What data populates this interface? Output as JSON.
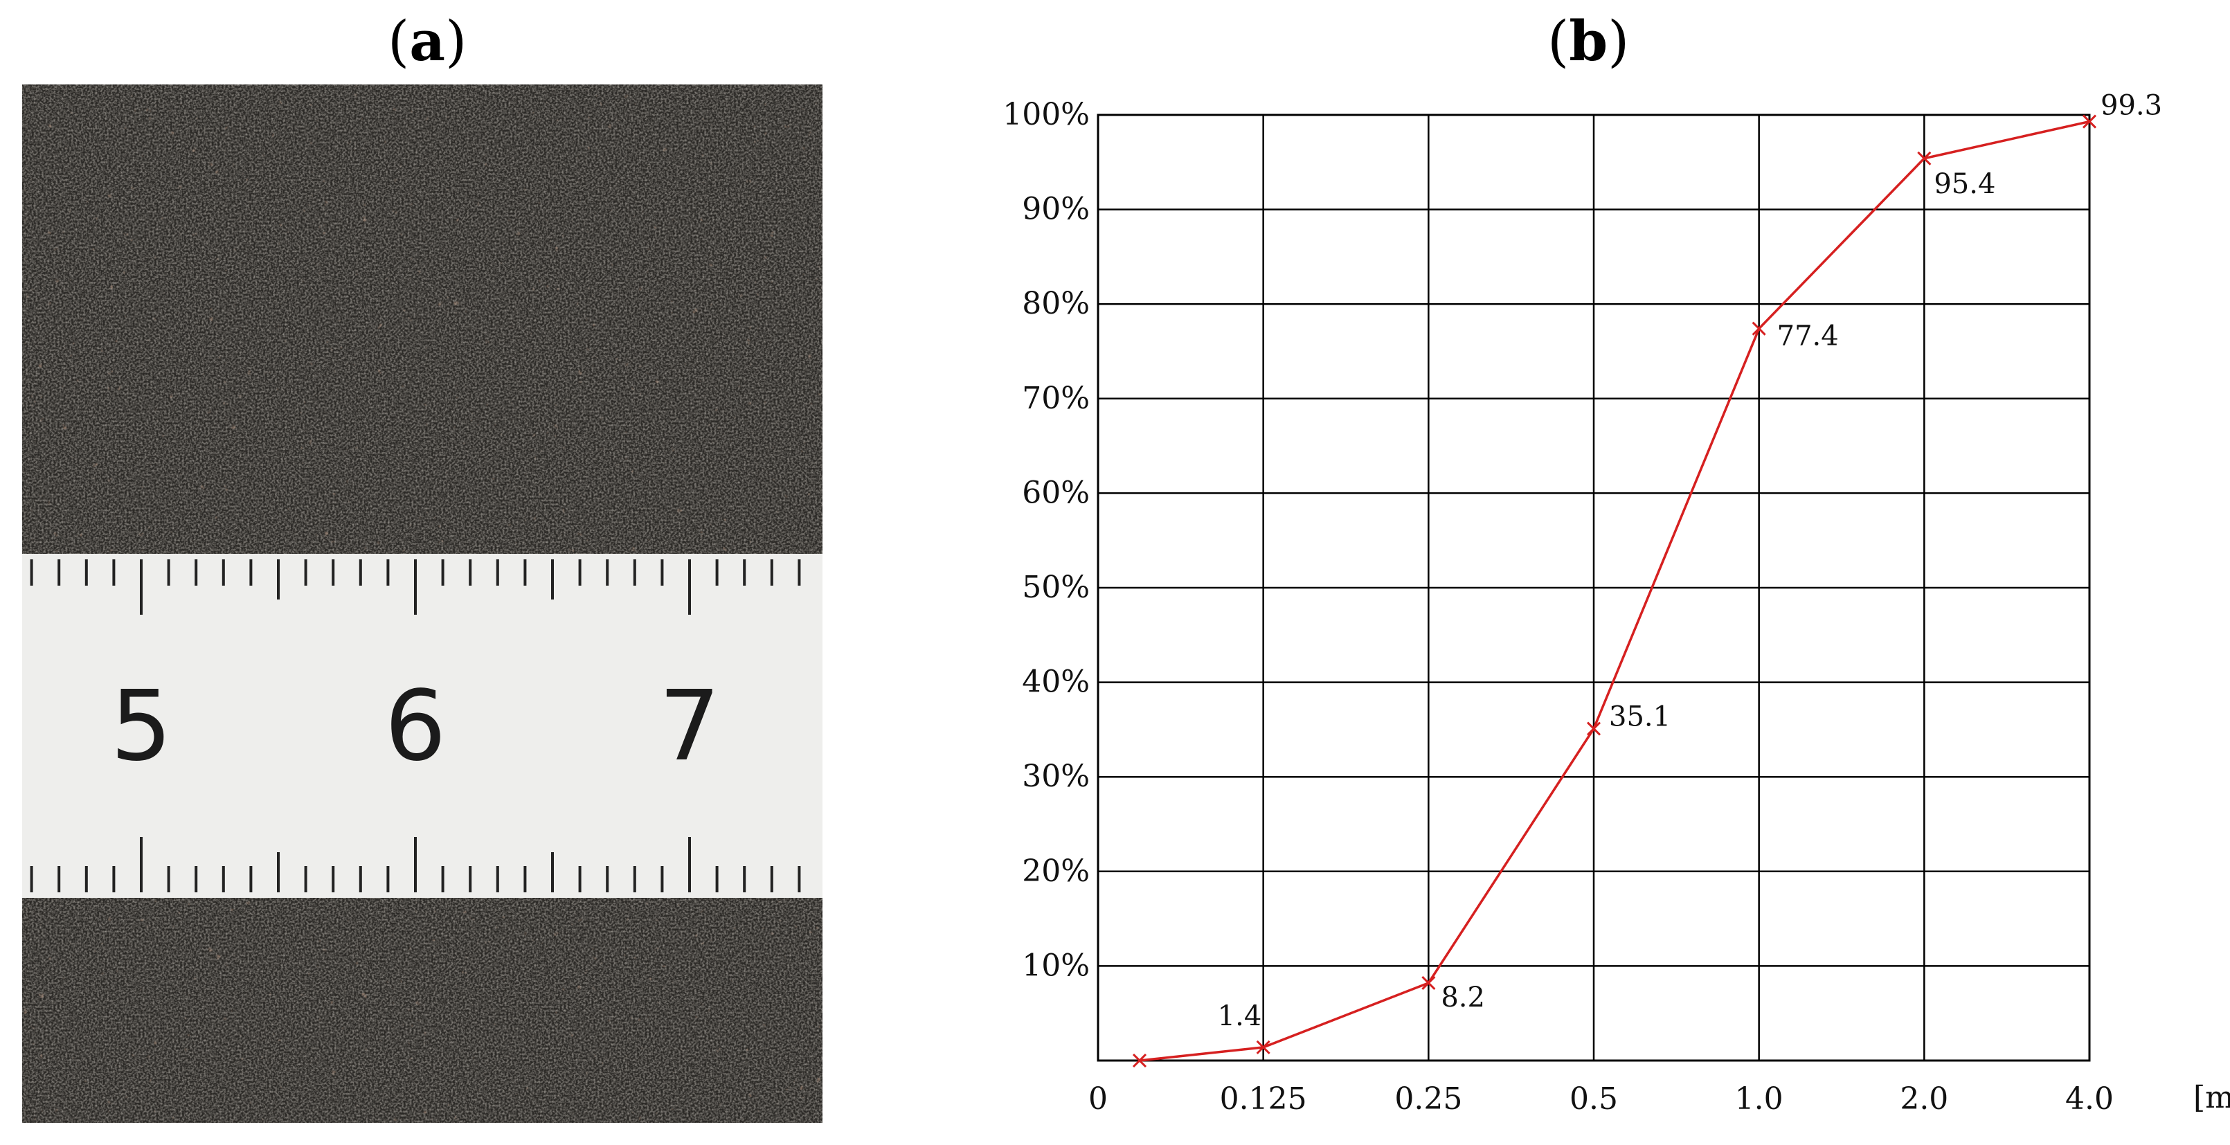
{
  "panels": {
    "a_label": "a",
    "b_label": "b"
  },
  "ruler": {
    "numbers": [
      "5",
      "6",
      "7"
    ]
  },
  "chart_data": {
    "type": "line",
    "title": "",
    "xlabel": "",
    "ylabel": "",
    "x_unit": "[mm]",
    "x_categories": [
      "0",
      "0.125",
      "0.25",
      "0.5",
      "1.0",
      "2.0",
      "4.0"
    ],
    "y_ticks": [
      "10%",
      "20%",
      "30%",
      "40%",
      "50%",
      "60%",
      "70%",
      "80%",
      "90%",
      "100%"
    ],
    "ylim": [
      0,
      100
    ],
    "grid": true,
    "line_color": "#d62020",
    "series": [
      {
        "points": [
          {
            "x": "0",
            "y": 0
          },
          {
            "x": "0.125",
            "y": 1.4,
            "label": "1.4"
          },
          {
            "x": "0.25",
            "y": 8.2,
            "label": "8.2"
          },
          {
            "x": "0.5",
            "y": 35.1,
            "label": "35.1"
          },
          {
            "x": "1.0",
            "y": 77.4,
            "label": "77.4"
          },
          {
            "x": "2.0",
            "y": 95.4,
            "label": "95.4"
          },
          {
            "x": "4.0",
            "y": 99.3,
            "label": "99.3"
          }
        ]
      }
    ]
  }
}
